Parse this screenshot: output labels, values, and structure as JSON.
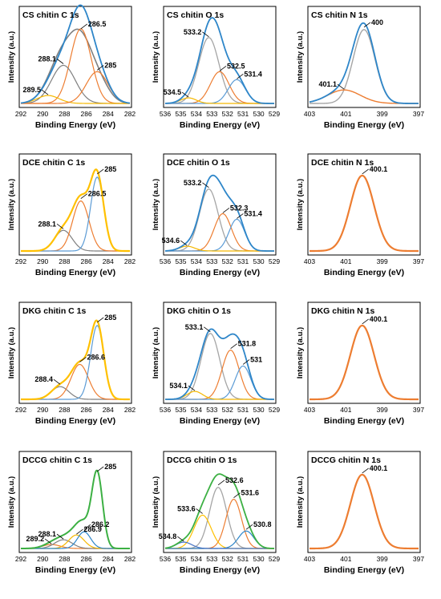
{
  "chart_data": [
    {
      "type": "line",
      "row": 0,
      "col": 0,
      "title": "CS chitin C 1s",
      "xlabel": "Binding Energy (eV)",
      "ylabel": "Intensity (a.u.)",
      "xlim": [
        292,
        282
      ],
      "xticks": [
        292,
        290,
        288,
        286,
        284,
        282
      ],
      "ylim": [
        0,
        1
      ],
      "series": [
        {
          "color": "#808080",
          "peaks": [
            [
              289.5,
              0.09,
              1.0
            ],
            [
              288.1,
              0.57,
              1.1
            ],
            [
              286.5,
              0.62,
              0.95
            ],
            [
              285,
              0.3,
              1.0
            ]
          ],
          "width": 1.6
        },
        {
          "color": "#ed7d31",
          "peaks": [
            [
              286.5,
              0.94,
              0.95
            ]
          ],
          "width": 1.2
        },
        {
          "color": "#7f7f7f",
          "peaks": [
            [
              288.1,
              0.48,
              1.1
            ]
          ],
          "width": 1.2
        },
        {
          "color": "#f5b800",
          "peaks": [
            [
              289.5,
              0.1,
              1.0
            ]
          ],
          "width": 1.2
        },
        {
          "color": "#ed7d31",
          "peaks": [
            [
              285,
              0.4,
              1.0
            ]
          ],
          "width": 1.2
        },
        {
          "color": "#2e86c9",
          "peaks": [
            [
              289.5,
              0.1,
              1.0
            ],
            [
              288.1,
              0.48,
              1.1
            ],
            [
              286.5,
              0.94,
              0.95
            ],
            [
              285,
              0.4,
              1.0
            ]
          ],
          "width": 1.8
        }
      ],
      "annotations": [
        {
          "label": "286.5",
          "x": 286.5,
          "y": 0.94
        },
        {
          "label": "288.1",
          "x": 288.1,
          "y": 0.5
        },
        {
          "label": "285",
          "x": 285,
          "y": 0.42
        },
        {
          "label": "289.5",
          "x": 289.5,
          "y": 0.11
        }
      ]
    },
    {
      "type": "line",
      "row": 0,
      "col": 1,
      "title": "CS chitin O 1s",
      "xlabel": "Binding Energy (eV)",
      "ylabel": "Intensity (a.u.)",
      "xlim": [
        536,
        529
      ],
      "xticks": [
        536,
        535,
        534,
        533,
        532,
        531,
        530,
        529
      ],
      "ylim": [
        0,
        1
      ],
      "series": [
        {
          "color": "#a5a5a5",
          "peaks": [
            [
              533.2,
              0.83,
              0.65
            ]
          ],
          "width": 1.3
        },
        {
          "color": "#ed7d31",
          "peaks": [
            [
              532.5,
              0.4,
              0.6
            ]
          ],
          "width": 1.2
        },
        {
          "color": "#5b9bd5",
          "peaks": [
            [
              531.4,
              0.3,
              0.55
            ]
          ],
          "width": 1.2
        },
        {
          "color": "#f5b800",
          "peaks": [
            [
              534.5,
              0.07,
              0.5
            ]
          ],
          "width": 1.2
        },
        {
          "color": "#2e86c9",
          "peaks": [
            [
              534.5,
              0.07,
              0.5
            ],
            [
              533.2,
              0.83,
              0.65
            ],
            [
              532.5,
              0.4,
              0.6
            ],
            [
              531.4,
              0.3,
              0.55
            ]
          ],
          "width": 1.8
        }
      ],
      "annotations": [
        {
          "label": "533.2",
          "x": 533.2,
          "y": 0.84
        },
        {
          "label": "532.5",
          "x": 532.5,
          "y": 0.41
        },
        {
          "label": "531.4",
          "x": 531.4,
          "y": 0.31
        },
        {
          "label": "534.5",
          "x": 534.5,
          "y": 0.08
        }
      ]
    },
    {
      "type": "line",
      "row": 0,
      "col": 2,
      "title": "CS chitin N 1s",
      "xlabel": "Binding Energy (eV)",
      "ylabel": "Intensity (a.u.)",
      "xlim": [
        403,
        397
      ],
      "xticks": [
        403,
        401,
        399,
        397
      ],
      "ylim": [
        0,
        1
      ],
      "series": [
        {
          "color": "#a5a5a5",
          "peaks": [
            [
              400,
              0.93,
              0.6
            ]
          ],
          "width": 1.4
        },
        {
          "color": "#ed7d31",
          "peaks": [
            [
              401.1,
              0.17,
              0.9
            ]
          ],
          "width": 1.4
        },
        {
          "color": "#2e86c9",
          "peaks": [
            [
              400,
              0.93,
              0.6
            ],
            [
              401.1,
              0.17,
              0.9
            ]
          ],
          "width": 1.8
        }
      ],
      "annotations": [
        {
          "label": "400",
          "x": 400,
          "y": 0.96
        },
        {
          "label": "401.1",
          "x": 401.1,
          "y": 0.18
        }
      ]
    },
    {
      "type": "line",
      "row": 1,
      "col": 0,
      "title": "DCE chitin C 1s",
      "xlabel": "Binding Energy (eV)",
      "ylabel": "Intensity (a.u.)",
      "xlim": [
        292,
        282
      ],
      "xticks": [
        292,
        290,
        288,
        286,
        284,
        282
      ],
      "ylim": [
        0,
        1
      ],
      "series": [
        {
          "color": "#7f7f7f",
          "peaks": [
            [
              288.1,
              0.26,
              0.8
            ]
          ],
          "width": 1.2
        },
        {
          "color": "#ed7d31",
          "peaks": [
            [
              286.5,
              0.63,
              0.75
            ]
          ],
          "width": 1.2
        },
        {
          "color": "#5b9bd5",
          "peaks": [
            [
              285,
              0.93,
              0.6
            ]
          ],
          "width": 1.2
        },
        {
          "color": "#ffc000",
          "peaks": [
            [
              288.1,
              0.26,
              0.8
            ],
            [
              286.5,
              0.63,
              0.75
            ],
            [
              285,
              0.93,
              0.6
            ]
          ],
          "width": 2.2
        }
      ],
      "annotations": [
        {
          "label": "285",
          "x": 285,
          "y": 0.97
        },
        {
          "label": "286.5",
          "x": 286.5,
          "y": 0.66
        },
        {
          "label": "288.1",
          "x": 288.1,
          "y": 0.28
        }
      ]
    },
    {
      "type": "line",
      "row": 1,
      "col": 1,
      "title": "DCE chitin O 1s",
      "xlabel": "Binding Energy (eV)",
      "ylabel": "Intensity (a.u.)",
      "xlim": [
        536,
        529
      ],
      "xticks": [
        536,
        535,
        534,
        533,
        532,
        531,
        530,
        529
      ],
      "ylim": [
        0,
        1
      ],
      "series": [
        {
          "color": "#a5a5a5",
          "peaks": [
            [
              533.2,
              0.78,
              0.6
            ]
          ],
          "width": 1.3
        },
        {
          "color": "#ed7d31",
          "peaks": [
            [
              532.3,
              0.47,
              0.55
            ]
          ],
          "width": 1.2
        },
        {
          "color": "#5b9bd5",
          "peaks": [
            [
              531.4,
              0.4,
              0.5
            ]
          ],
          "width": 1.2
        },
        {
          "color": "#f5b800",
          "peaks": [
            [
              534.6,
              0.06,
              0.5
            ]
          ],
          "width": 1.2
        },
        {
          "color": "#2e86c9",
          "peaks": [
            [
              534.6,
              0.06,
              0.5
            ],
            [
              533.2,
              0.78,
              0.6
            ],
            [
              532.3,
              0.47,
              0.55
            ],
            [
              531.4,
              0.4,
              0.5
            ]
          ],
          "width": 1.8
        }
      ],
      "annotations": [
        {
          "label": "533.2",
          "x": 533.2,
          "y": 0.8
        },
        {
          "label": "532.3",
          "x": 532.3,
          "y": 0.48
        },
        {
          "label": "531.4",
          "x": 531.4,
          "y": 0.41
        },
        {
          "label": "534.6",
          "x": 534.6,
          "y": 0.07
        }
      ]
    },
    {
      "type": "line",
      "row": 1,
      "col": 2,
      "title": "DCE chitin N 1s",
      "xlabel": "Binding Energy (eV)",
      "ylabel": "Intensity (a.u.)",
      "xlim": [
        403,
        397
      ],
      "xticks": [
        403,
        401,
        399,
        397
      ],
      "ylim": [
        0,
        1
      ],
      "series": [
        {
          "color": "#ed7d31",
          "peaks": [
            [
              400.1,
              0.95,
              0.65
            ]
          ],
          "width": 2.2
        }
      ],
      "annotations": [
        {
          "label": "400.1",
          "x": 400.1,
          "y": 0.97
        }
      ]
    },
    {
      "type": "line",
      "row": 2,
      "col": 0,
      "title": "DKG chitin C 1s",
      "xlabel": "Binding Energy (eV)",
      "ylabel": "Intensity (a.u.)",
      "xlim": [
        292,
        282
      ],
      "xticks": [
        292,
        290,
        288,
        286,
        284,
        282
      ],
      "ylim": [
        0,
        1
      ],
      "series": [
        {
          "color": "#7f7f7f",
          "peaks": [
            [
              288.4,
              0.16,
              0.8
            ]
          ],
          "width": 1.2
        },
        {
          "color": "#ed7d31",
          "peaks": [
            [
              286.6,
              0.44,
              0.8
            ]
          ],
          "width": 1.2
        },
        {
          "color": "#5b9bd5",
          "peaks": [
            [
              285,
              0.93,
              0.6
            ]
          ],
          "width": 1.2
        },
        {
          "color": "#ffc000",
          "peaks": [
            [
              288.4,
              0.16,
              0.8
            ],
            [
              286.6,
              0.44,
              0.8
            ],
            [
              285,
              0.93,
              0.6
            ]
          ],
          "width": 2.2
        }
      ],
      "annotations": [
        {
          "label": "285",
          "x": 285,
          "y": 0.97
        },
        {
          "label": "286.6",
          "x": 286.6,
          "y": 0.47
        },
        {
          "label": "288.4",
          "x": 288.4,
          "y": 0.19
        }
      ]
    },
    {
      "type": "line",
      "row": 2,
      "col": 1,
      "title": "DKG chitin O 1s",
      "xlabel": "Binding Energy (eV)",
      "ylabel": "Intensity (a.u.)",
      "xlim": [
        536,
        529
      ],
      "xticks": [
        536,
        535,
        534,
        533,
        532,
        531,
        530,
        529
      ],
      "ylim": [
        0,
        1
      ],
      "series": [
        {
          "color": "#a5a5a5",
          "peaks": [
            [
              533.1,
              0.83,
              0.6
            ]
          ],
          "width": 1.3
        },
        {
          "color": "#ed7d31",
          "peaks": [
            [
              531.8,
              0.62,
              0.55
            ]
          ],
          "width": 1.2
        },
        {
          "color": "#5b9bd5",
          "peaks": [
            [
              531,
              0.42,
              0.5
            ]
          ],
          "width": 1.2
        },
        {
          "color": "#f5b800",
          "peaks": [
            [
              534.1,
              0.1,
              0.5
            ]
          ],
          "width": 1.2
        },
        {
          "color": "#2e86c9",
          "peaks": [
            [
              534.1,
              0.1,
              0.5
            ],
            [
              533.1,
              0.83,
              0.6
            ],
            [
              531.8,
              0.62,
              0.55
            ],
            [
              531,
              0.42,
              0.5
            ]
          ],
          "width": 1.8
        }
      ],
      "annotations": [
        {
          "label": "533.1",
          "x": 533.1,
          "y": 0.85
        },
        {
          "label": "531.8",
          "x": 531.8,
          "y": 0.64
        },
        {
          "label": "531",
          "x": 531,
          "y": 0.44
        },
        {
          "label": "534.1",
          "x": 534.1,
          "y": 0.11
        }
      ]
    },
    {
      "type": "line",
      "row": 2,
      "col": 2,
      "title": "DKG chitin N 1s",
      "xlabel": "Binding Energy (eV)",
      "ylabel": "Intensity (a.u.)",
      "xlim": [
        403,
        397
      ],
      "xticks": [
        403,
        401,
        399,
        397
      ],
      "ylim": [
        0,
        1
      ],
      "series": [
        {
          "color": "#ed7d31",
          "peaks": [
            [
              400.1,
              0.93,
              0.65
            ]
          ],
          "width": 2.2
        }
      ],
      "annotations": [
        {
          "label": "400.1",
          "x": 400.1,
          "y": 0.95
        }
      ]
    },
    {
      "type": "line",
      "row": 3,
      "col": 0,
      "title": "DCCG chitin C 1s",
      "xlabel": "Binding Energy (eV)",
      "ylabel": "Intensity (a.u.)",
      "xlim": [
        292,
        282
      ],
      "xticks": [
        292,
        290,
        288,
        286,
        284,
        282
      ],
      "ylim": [
        0,
        1
      ],
      "series": [
        {
          "color": "#ed7d31",
          "peaks": [
            [
              289.2,
              0.05,
              0.8
            ]
          ],
          "width": 1.2
        },
        {
          "color": "#7f7f7f",
          "peaks": [
            [
              288.1,
              0.11,
              0.8
            ]
          ],
          "width": 1.2
        },
        {
          "color": "#f5b800",
          "peaks": [
            [
              286.9,
              0.17,
              0.7
            ]
          ],
          "width": 1.2
        },
        {
          "color": "#2e86c9",
          "peaks": [
            [
              286.2,
              0.21,
              0.6
            ]
          ],
          "width": 1.2
        },
        {
          "color": "#3cb043",
          "peaks": [
            [
              289.2,
              0.05,
              0.8
            ],
            [
              288.1,
              0.11,
              0.8
            ],
            [
              286.9,
              0.17,
              0.7
            ],
            [
              286.2,
              0.21,
              0.6
            ],
            [
              285,
              0.95,
              0.5
            ]
          ],
          "width": 2.0
        }
      ],
      "annotations": [
        {
          "label": "285",
          "x": 285,
          "y": 0.97
        },
        {
          "label": "286.2",
          "x": 286.2,
          "y": 0.24
        },
        {
          "label": "286.9",
          "x": 286.9,
          "y": 0.18
        },
        {
          "label": "288.1",
          "x": 288.1,
          "y": 0.12
        },
        {
          "label": "289.2",
          "x": 289.2,
          "y": 0.06
        }
      ]
    },
    {
      "type": "line",
      "row": 3,
      "col": 1,
      "title": "DCCG chitin O 1s",
      "xlabel": "Binding Energy (eV)",
      "ylabel": "Intensity (a.u.)",
      "xlim": [
        536,
        529
      ],
      "xticks": [
        536,
        535,
        534,
        533,
        532,
        531,
        530,
        529
      ],
      "ylim": [
        0,
        1
      ],
      "series": [
        {
          "color": "#a5a5a5",
          "peaks": [
            [
              532.6,
              0.77,
              0.55
            ]
          ],
          "width": 1.3
        },
        {
          "color": "#ed7d31",
          "peaks": [
            [
              531.6,
              0.62,
              0.5
            ]
          ],
          "width": 1.2
        },
        {
          "color": "#ffc000",
          "peaks": [
            [
              533.6,
              0.42,
              0.55
            ]
          ],
          "width": 1.2
        },
        {
          "color": "#2e86c9",
          "peaks": [
            [
              530.8,
              0.22,
              0.5
            ]
          ],
          "width": 1.2
        },
        {
          "color": "#4472c4",
          "peaks": [
            [
              534.8,
              0.08,
              0.5
            ]
          ],
          "width": 1.2
        },
        {
          "color": "#3cb043",
          "peaks": [
            [
              534.8,
              0.08,
              0.5
            ],
            [
              533.6,
              0.42,
              0.55
            ],
            [
              532.6,
              0.77,
              0.55
            ],
            [
              531.6,
              0.62,
              0.5
            ],
            [
              530.8,
              0.22,
              0.5
            ]
          ],
          "width": 1.8
        }
      ],
      "annotations": [
        {
          "label": "532.6",
          "x": 532.6,
          "y": 0.8
        },
        {
          "label": "531.6",
          "x": 531.6,
          "y": 0.64
        },
        {
          "label": "533.6",
          "x": 533.6,
          "y": 0.44
        },
        {
          "label": "530.8",
          "x": 530.8,
          "y": 0.24
        },
        {
          "label": "534.8",
          "x": 534.8,
          "y": 0.09
        }
      ]
    },
    {
      "type": "line",
      "row": 3,
      "col": 2,
      "title": "DCCG chitin N 1s",
      "xlabel": "Binding Energy (eV)",
      "ylabel": "Intensity (a.u.)",
      "xlim": [
        403,
        397
      ],
      "xticks": [
        403,
        401,
        399,
        397
      ],
      "ylim": [
        0,
        1
      ],
      "series": [
        {
          "color": "#ed7d31",
          "peaks": [
            [
              400.1,
              0.93,
              0.65
            ]
          ],
          "width": 2.2
        }
      ],
      "annotations": [
        {
          "label": "400.1",
          "x": 400.1,
          "y": 0.95
        }
      ]
    }
  ]
}
